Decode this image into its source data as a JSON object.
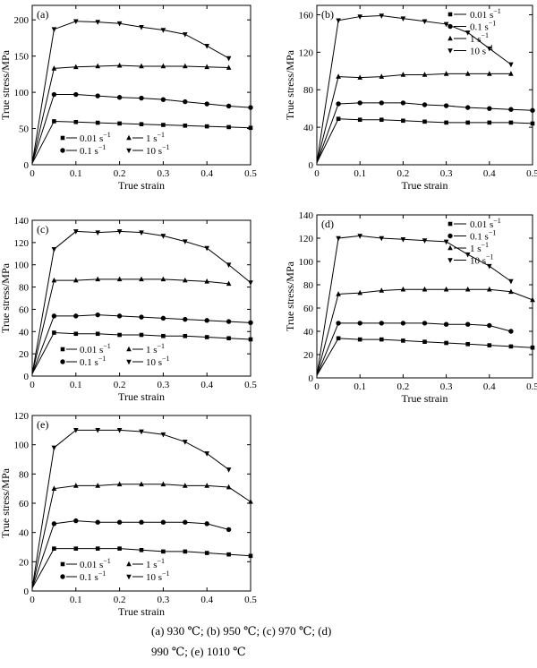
{
  "chart_data": [
    {
      "type": "line",
      "panel_label": "(a)",
      "xlabel": "True strain",
      "ylabel": "True stress/MPa",
      "xlim": [
        0,
        0.5
      ],
      "ylim": [
        0,
        220
      ],
      "xticks": [
        "0",
        "0.1",
        "0.2",
        "0.3",
        "0.4",
        "0.5"
      ],
      "yticks": [
        "0",
        "50",
        "100",
        "150",
        "200"
      ],
      "legend": {
        "placement": "bottom-center",
        "columns": 2
      },
      "series": [
        {
          "name": "0.01 s⁻¹",
          "marker": "square",
          "x": [
            0,
            0.05,
            0.1,
            0.15,
            0.2,
            0.25,
            0.3,
            0.35,
            0.4,
            0.45,
            0.5
          ],
          "y": [
            2,
            60,
            59,
            58,
            57,
            56,
            55,
            54,
            53,
            52,
            51
          ]
        },
        {
          "name": "0.1 s⁻¹",
          "marker": "circle",
          "x": [
            0,
            0.05,
            0.1,
            0.15,
            0.2,
            0.25,
            0.3,
            0.35,
            0.4,
            0.45,
            0.5
          ],
          "y": [
            2,
            97,
            97,
            95,
            93,
            92,
            90,
            87,
            84,
            81,
            79
          ]
        },
        {
          "name": "1 s⁻¹",
          "marker": "triangle-up",
          "x": [
            0,
            0.05,
            0.1,
            0.15,
            0.2,
            0.25,
            0.3,
            0.35,
            0.4,
            0.45
          ],
          "y": [
            2,
            133,
            135,
            136,
            137,
            136,
            136,
            136,
            135,
            134
          ]
        },
        {
          "name": "10 s⁻¹",
          "marker": "triangle-down",
          "x": [
            0,
            0.05,
            0.1,
            0.15,
            0.2,
            0.25,
            0.3,
            0.35,
            0.4,
            0.45
          ],
          "y": [
            2,
            187,
            198,
            197,
            195,
            190,
            186,
            180,
            164,
            147
          ]
        }
      ]
    },
    {
      "type": "line",
      "panel_label": "(b)",
      "xlabel": "True strain",
      "ylabel": "True stress/MPa",
      "xlim": [
        0,
        0.5
      ],
      "ylim": [
        0,
        170
      ],
      "xticks": [
        "0",
        "0.1",
        "0.2",
        "0.3",
        "0.4",
        "0.5"
      ],
      "yticks": [
        "0",
        "40",
        "80",
        "120",
        "160"
      ],
      "legend": {
        "placement": "top-right",
        "columns": 1
      },
      "series": [
        {
          "name": "0.01 s⁻¹",
          "marker": "square",
          "x": [
            0,
            0.05,
            0.1,
            0.15,
            0.2,
            0.25,
            0.3,
            0.35,
            0.4,
            0.45,
            0.5
          ],
          "y": [
            2,
            49,
            48,
            48,
            47,
            46,
            45,
            45,
            45,
            45,
            44
          ]
        },
        {
          "name": "0.1 s⁻¹",
          "marker": "circle",
          "x": [
            0,
            0.05,
            0.1,
            0.15,
            0.2,
            0.25,
            0.3,
            0.35,
            0.4,
            0.45,
            0.5
          ],
          "y": [
            2,
            65,
            66,
            66,
            66,
            64,
            63,
            61,
            60,
            59,
            58
          ]
        },
        {
          "name": "1 s⁻¹",
          "marker": "triangle-up",
          "x": [
            0,
            0.05,
            0.1,
            0.15,
            0.2,
            0.25,
            0.3,
            0.35,
            0.4,
            0.45
          ],
          "y": [
            2,
            94,
            93,
            94,
            96,
            96,
            97,
            97,
            97,
            97
          ]
        },
        {
          "name": "10 s⁻¹",
          "marker": "triangle-down",
          "x": [
            0,
            0.05,
            0.1,
            0.15,
            0.2,
            0.25,
            0.3,
            0.35,
            0.4,
            0.45
          ],
          "y": [
            2,
            154,
            158,
            159,
            156,
            153,
            150,
            141,
            124,
            107
          ]
        }
      ]
    },
    {
      "type": "line",
      "panel_label": "(c)",
      "xlabel": "True strain",
      "ylabel": "True stress/MPa",
      "xlim": [
        0,
        0.5
      ],
      "ylim": [
        0,
        140
      ],
      "xticks": [
        "0",
        "0.1",
        "0.2",
        "0.3",
        "0.4",
        "0.5"
      ],
      "yticks": [
        "0",
        "20",
        "40",
        "60",
        "80",
        "100",
        "120",
        "140"
      ],
      "legend": {
        "placement": "bottom-center",
        "columns": 2
      },
      "series": [
        {
          "name": "0.01 s⁻¹",
          "marker": "square",
          "x": [
            0,
            0.05,
            0.1,
            0.15,
            0.2,
            0.25,
            0.3,
            0.35,
            0.4,
            0.45,
            0.5
          ],
          "y": [
            2,
            39,
            38,
            38,
            37,
            37,
            36,
            36,
            35,
            34,
            33
          ]
        },
        {
          "name": "0.1 s⁻¹",
          "marker": "circle",
          "x": [
            0,
            0.05,
            0.1,
            0.15,
            0.2,
            0.25,
            0.3,
            0.35,
            0.4,
            0.45,
            0.5
          ],
          "y": [
            2,
            54,
            54,
            55,
            54,
            53,
            52,
            51,
            50,
            49,
            48
          ]
        },
        {
          "name": "1 s⁻¹",
          "marker": "triangle-up",
          "x": [
            0,
            0.05,
            0.1,
            0.15,
            0.2,
            0.25,
            0.3,
            0.35,
            0.4,
            0.45
          ],
          "y": [
            2,
            86,
            86,
            87,
            87,
            87,
            87,
            86,
            85,
            83
          ]
        },
        {
          "name": "10 s⁻¹",
          "marker": "triangle-down",
          "x": [
            0,
            0.05,
            0.1,
            0.15,
            0.2,
            0.25,
            0.3,
            0.35,
            0.4,
            0.45,
            0.5
          ],
          "y": [
            2,
            114,
            130,
            129,
            130,
            129,
            126,
            121,
            115,
            100,
            84
          ]
        }
      ]
    },
    {
      "type": "line",
      "panel_label": "(d)",
      "xlabel": "True strain",
      "ylabel": "True stress/MPa",
      "xlim": [
        0,
        0.5
      ],
      "ylim": [
        0,
        140
      ],
      "xticks": [
        "0",
        "0.1",
        "0.2",
        "0.3",
        "0.4",
        "0.5"
      ],
      "yticks": [
        "0",
        "20",
        "40",
        "60",
        "80",
        "100",
        "120",
        "140"
      ],
      "legend": {
        "placement": "top-right",
        "columns": 1
      },
      "series": [
        {
          "name": "0.01 s⁻¹",
          "marker": "square",
          "x": [
            0,
            0.05,
            0.1,
            0.15,
            0.2,
            0.25,
            0.3,
            0.35,
            0.4,
            0.45,
            0.5
          ],
          "y": [
            2,
            34,
            33,
            33,
            32,
            31,
            30,
            29,
            28,
            27,
            26
          ]
        },
        {
          "name": "0.1 s⁻¹",
          "marker": "circle",
          "x": [
            0,
            0.05,
            0.1,
            0.15,
            0.2,
            0.25,
            0.3,
            0.35,
            0.4,
            0.45
          ],
          "y": [
            2,
            47,
            47,
            47,
            47,
            47,
            46,
            46,
            45,
            40
          ]
        },
        {
          "name": "1 s⁻¹",
          "marker": "triangle-up",
          "x": [
            0,
            0.05,
            0.1,
            0.15,
            0.2,
            0.25,
            0.3,
            0.35,
            0.4,
            0.45,
            0.5
          ],
          "y": [
            2,
            72,
            73,
            75,
            76,
            76,
            76,
            76,
            76,
            74,
            67
          ]
        },
        {
          "name": "10 s⁻¹",
          "marker": "triangle-down",
          "x": [
            0,
            0.05,
            0.1,
            0.15,
            0.2,
            0.25,
            0.3,
            0.35,
            0.4,
            0.45
          ],
          "y": [
            2,
            120,
            122,
            120,
            119,
            118,
            117,
            106,
            96,
            83
          ]
        }
      ]
    },
    {
      "type": "line",
      "panel_label": "(e)",
      "xlabel": "True strain",
      "ylabel": "True stress/MPa",
      "xlim": [
        0,
        0.5
      ],
      "ylim": [
        0,
        120
      ],
      "xticks": [
        "0",
        "0.1",
        "0.2",
        "0.3",
        "0.4",
        "0.5"
      ],
      "yticks": [
        "0",
        "20",
        "40",
        "60",
        "80",
        "100",
        "120"
      ],
      "legend": {
        "placement": "bottom-center",
        "columns": 2
      },
      "series": [
        {
          "name": "0.01 s⁻¹",
          "marker": "square",
          "x": [
            0,
            0.05,
            0.1,
            0.15,
            0.2,
            0.25,
            0.3,
            0.35,
            0.4,
            0.45,
            0.5
          ],
          "y": [
            2,
            29,
            29,
            29,
            29,
            28,
            27,
            27,
            26,
            25,
            24
          ]
        },
        {
          "name": "0.1 s⁻¹",
          "marker": "circle",
          "x": [
            0,
            0.05,
            0.1,
            0.15,
            0.2,
            0.25,
            0.3,
            0.35,
            0.4,
            0.45
          ],
          "y": [
            2,
            46,
            48,
            47,
            47,
            47,
            47,
            47,
            46,
            42
          ]
        },
        {
          "name": "1 s⁻¹",
          "marker": "triangle-up",
          "x": [
            0,
            0.05,
            0.1,
            0.15,
            0.2,
            0.25,
            0.3,
            0.35,
            0.4,
            0.45,
            0.5
          ],
          "y": [
            2,
            70,
            72,
            72,
            73,
            73,
            73,
            72,
            72,
            71,
            61
          ]
        },
        {
          "name": "10 s⁻¹",
          "marker": "triangle-down",
          "x": [
            0,
            0.05,
            0.1,
            0.15,
            0.2,
            0.25,
            0.3,
            0.35,
            0.4,
            0.45
          ],
          "y": [
            2,
            98,
            110,
            110,
            110,
            109,
            107,
            102,
            94,
            83
          ]
        }
      ]
    }
  ],
  "caption": {
    "line1": "(a)  930  ℃;  (b)  950  ℃;  (c)  970  ℃;  (d)",
    "line2": "990 ℃; (e) 1010 ℃"
  }
}
